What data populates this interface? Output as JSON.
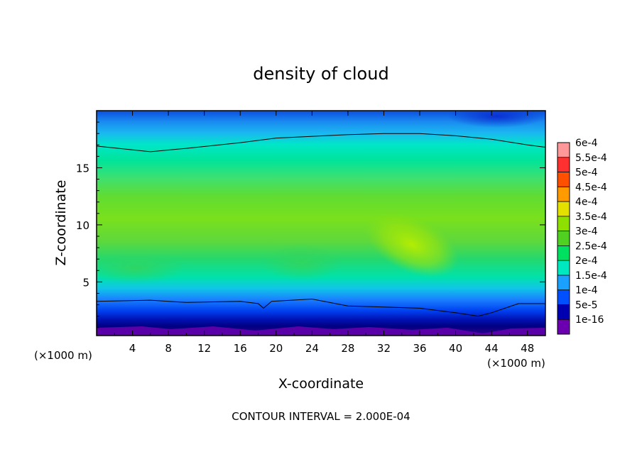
{
  "chart_data": {
    "type": "heatmap",
    "title": "density of cloud",
    "xlabel": "X-coordinate",
    "ylabel": "Z-coordinate",
    "x_unit_left": "(×1000 m)",
    "x_unit_right": "(×1000 m)",
    "xlim": [
      0,
      50
    ],
    "ylim": [
      0.3,
      20
    ],
    "x_ticks": [
      4,
      8,
      12,
      16,
      20,
      24,
      28,
      32,
      36,
      40,
      44,
      48
    ],
    "y_ticks": [
      5,
      10,
      15
    ],
    "footer": "CONTOUR INTERVAL = 2.000E-04",
    "colorbar": {
      "labels": [
        "6e-4",
        "5.5e-4",
        "5e-4",
        "4.5e-4",
        "4e-4",
        "3.5e-4",
        "3e-4",
        "2.5e-4",
        "2e-4",
        "1.5e-4",
        "1e-4",
        "5e-5",
        "1e-16"
      ],
      "levels": [
        0.0006,
        0.00055,
        0.0005,
        0.00045,
        0.0004,
        0.00035,
        0.0003,
        0.00025,
        0.0002,
        0.00015,
        0.0001,
        5e-05,
        0.0
      ],
      "colors": [
        "#ff9999",
        "#ff3030",
        "#ff5000",
        "#ff9a00",
        "#e4e000",
        "#8ee000",
        "#50d020",
        "#00e060",
        "#00e8c0",
        "#1aa0ff",
        "#0050ff",
        "#0000b0",
        "#6a00b0"
      ]
    },
    "contour_lines": [
      {
        "value": 0.0002,
        "x": [
          0,
          6,
          10,
          16,
          20,
          28,
          32,
          36,
          40,
          44,
          48,
          50
        ],
        "z": [
          16.9,
          16.4,
          16.7,
          17.2,
          17.6,
          17.9,
          18.0,
          18.0,
          17.8,
          17.5,
          17.0,
          16.8
        ]
      },
      {
        "value": 0.0,
        "x": [
          0,
          6,
          10,
          16,
          18,
          18.6,
          19.5,
          24,
          28,
          36,
          40,
          42.5,
          44,
          47,
          50
        ],
        "z": [
          3.3,
          3.4,
          3.2,
          3.3,
          3.1,
          2.7,
          3.3,
          3.5,
          2.9,
          2.7,
          2.3,
          2.0,
          2.3,
          3.1,
          3.1
        ]
      }
    ]
  }
}
